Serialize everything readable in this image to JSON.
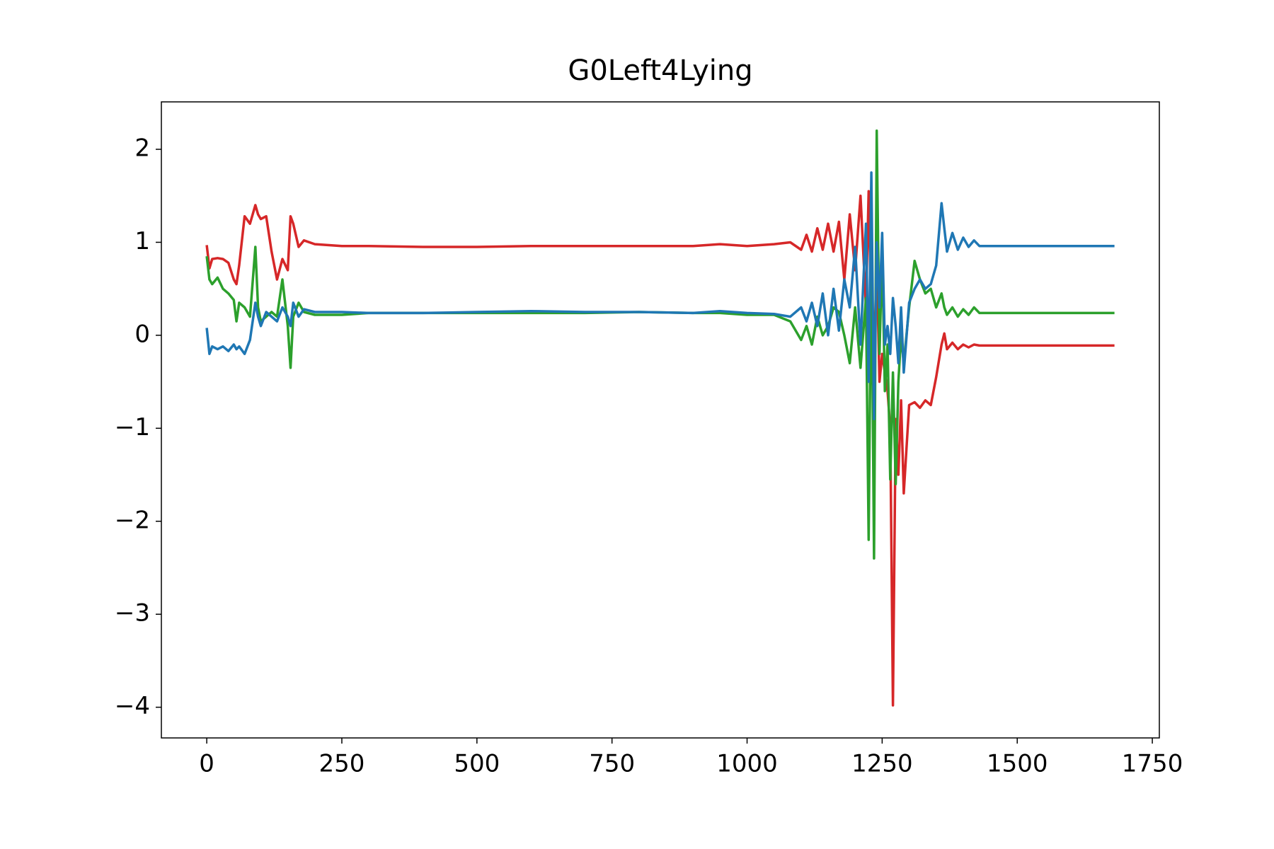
{
  "chart_data": {
    "type": "line",
    "title": "G0Left4Lying",
    "x": [
      0,
      5,
      10,
      20,
      30,
      40,
      50,
      55,
      60,
      70,
      80,
      90,
      95,
      100,
      110,
      120,
      130,
      140,
      150,
      155,
      160,
      170,
      180,
      200,
      250,
      300,
      400,
      500,
      600,
      700,
      800,
      900,
      950,
      1000,
      1050,
      1080,
      1100,
      1110,
      1120,
      1130,
      1140,
      1150,
      1160,
      1170,
      1180,
      1190,
      1200,
      1210,
      1220,
      1225,
      1230,
      1235,
      1240,
      1245,
      1250,
      1255,
      1260,
      1265,
      1270,
      1275,
      1280,
      1285,
      1290,
      1300,
      1310,
      1320,
      1330,
      1340,
      1350,
      1360,
      1365,
      1370,
      1380,
      1390,
      1400,
      1410,
      1420,
      1430,
      1500,
      1600,
      1680
    ],
    "series": [
      {
        "color": "#d62728",
        "values": [
          0.97,
          0.72,
          0.82,
          0.83,
          0.82,
          0.78,
          0.6,
          0.55,
          0.75,
          1.28,
          1.2,
          1.4,
          1.3,
          1.25,
          1.28,
          0.9,
          0.6,
          0.82,
          0.7,
          1.28,
          1.2,
          0.95,
          1.02,
          0.98,
          0.96,
          0.96,
          0.95,
          0.95,
          0.96,
          0.96,
          0.96,
          0.96,
          0.98,
          0.96,
          0.98,
          1.0,
          0.92,
          1.08,
          0.9,
          1.15,
          0.92,
          1.2,
          0.9,
          1.22,
          0.6,
          1.3,
          0.7,
          1.5,
          0.3,
          1.55,
          0.2,
          -0.3,
          0.8,
          -0.5,
          -0.2,
          -0.4,
          -0.6,
          -1.0,
          -3.98,
          -0.9,
          -1.5,
          -0.7,
          -1.7,
          -0.75,
          -0.72,
          -0.78,
          -0.7,
          -0.75,
          -0.45,
          -0.1,
          0.02,
          -0.15,
          -0.08,
          -0.15,
          -0.1,
          -0.13,
          -0.1,
          -0.11,
          -0.11,
          -0.11,
          -0.11
        ]
      },
      {
        "color": "#2ca02c",
        "values": [
          0.85,
          0.6,
          0.55,
          0.62,
          0.5,
          0.45,
          0.38,
          0.15,
          0.35,
          0.3,
          0.2,
          0.95,
          0.3,
          0.15,
          0.2,
          0.25,
          0.2,
          0.6,
          0.1,
          -0.35,
          0.2,
          0.35,
          0.25,
          0.22,
          0.22,
          0.24,
          0.24,
          0.24,
          0.24,
          0.24,
          0.25,
          0.24,
          0.24,
          0.22,
          0.22,
          0.15,
          -0.05,
          0.1,
          -0.1,
          0.2,
          0.0,
          0.1,
          0.3,
          0.25,
          0.0,
          -0.3,
          0.3,
          -0.35,
          0.4,
          -2.2,
          1.0,
          -2.4,
          2.2,
          -0.2,
          0.9,
          -0.6,
          -0.1,
          -1.55,
          -0.4,
          -1.6,
          -0.5,
          0.0,
          -0.3,
          0.3,
          0.8,
          0.6,
          0.45,
          0.5,
          0.3,
          0.45,
          0.3,
          0.22,
          0.3,
          0.2,
          0.28,
          0.22,
          0.3,
          0.24,
          0.24,
          0.24,
          0.24
        ]
      },
      {
        "color": "#1f77b4",
        "values": [
          0.08,
          -0.2,
          -0.12,
          -0.15,
          -0.12,
          -0.17,
          -0.1,
          -0.15,
          -0.12,
          -0.2,
          -0.05,
          0.35,
          0.2,
          0.1,
          0.25,
          0.2,
          0.15,
          0.3,
          0.2,
          0.1,
          0.35,
          0.2,
          0.28,
          0.25,
          0.25,
          0.24,
          0.24,
          0.25,
          0.26,
          0.25,
          0.25,
          0.24,
          0.26,
          0.24,
          0.23,
          0.2,
          0.3,
          0.15,
          0.35,
          0.1,
          0.45,
          0.0,
          0.5,
          0.05,
          0.6,
          0.3,
          0.95,
          -0.1,
          1.2,
          -0.5,
          1.75,
          -0.9,
          1.0,
          0.3,
          1.1,
          -0.1,
          0.1,
          -0.2,
          0.4,
          0.1,
          -0.3,
          0.3,
          -0.4,
          0.35,
          0.5,
          0.6,
          0.5,
          0.55,
          0.75,
          1.42,
          1.15,
          0.9,
          1.1,
          0.92,
          1.05,
          0.95,
          1.02,
          0.96,
          0.96,
          0.96,
          0.96
        ]
      }
    ],
    "xlim": [
      -84,
      1763
    ],
    "ylim": [
      -4.33,
      2.51
    ],
    "xticks": [
      0,
      250,
      500,
      750,
      1000,
      1250,
      1500,
      1750
    ],
    "yticks": [
      {
        "value": -4,
        "label": "−4"
      },
      {
        "value": -3,
        "label": "−3"
      },
      {
        "value": -2,
        "label": "−2"
      },
      {
        "value": -1,
        "label": "−1"
      },
      0,
      1,
      2
    ]
  }
}
